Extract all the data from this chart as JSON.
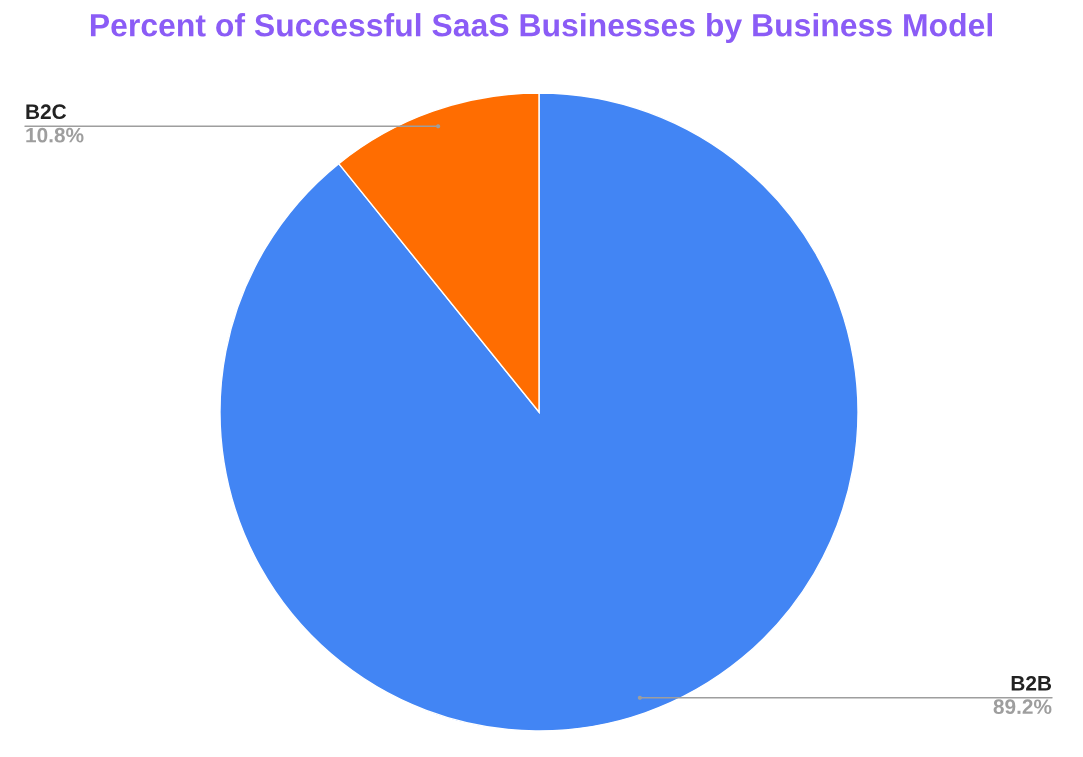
{
  "chart_data": {
    "type": "pie",
    "title": "Percent of Successful SaaS Businesses by Business Model",
    "categories": [
      "B2B",
      "B2C"
    ],
    "values": [
      89.2,
      10.8
    ],
    "colors": [
      "#4285f4",
      "#ff6d01"
    ],
    "value_labels": [
      "89.2%",
      "10.8%"
    ],
    "legend": false
  }
}
